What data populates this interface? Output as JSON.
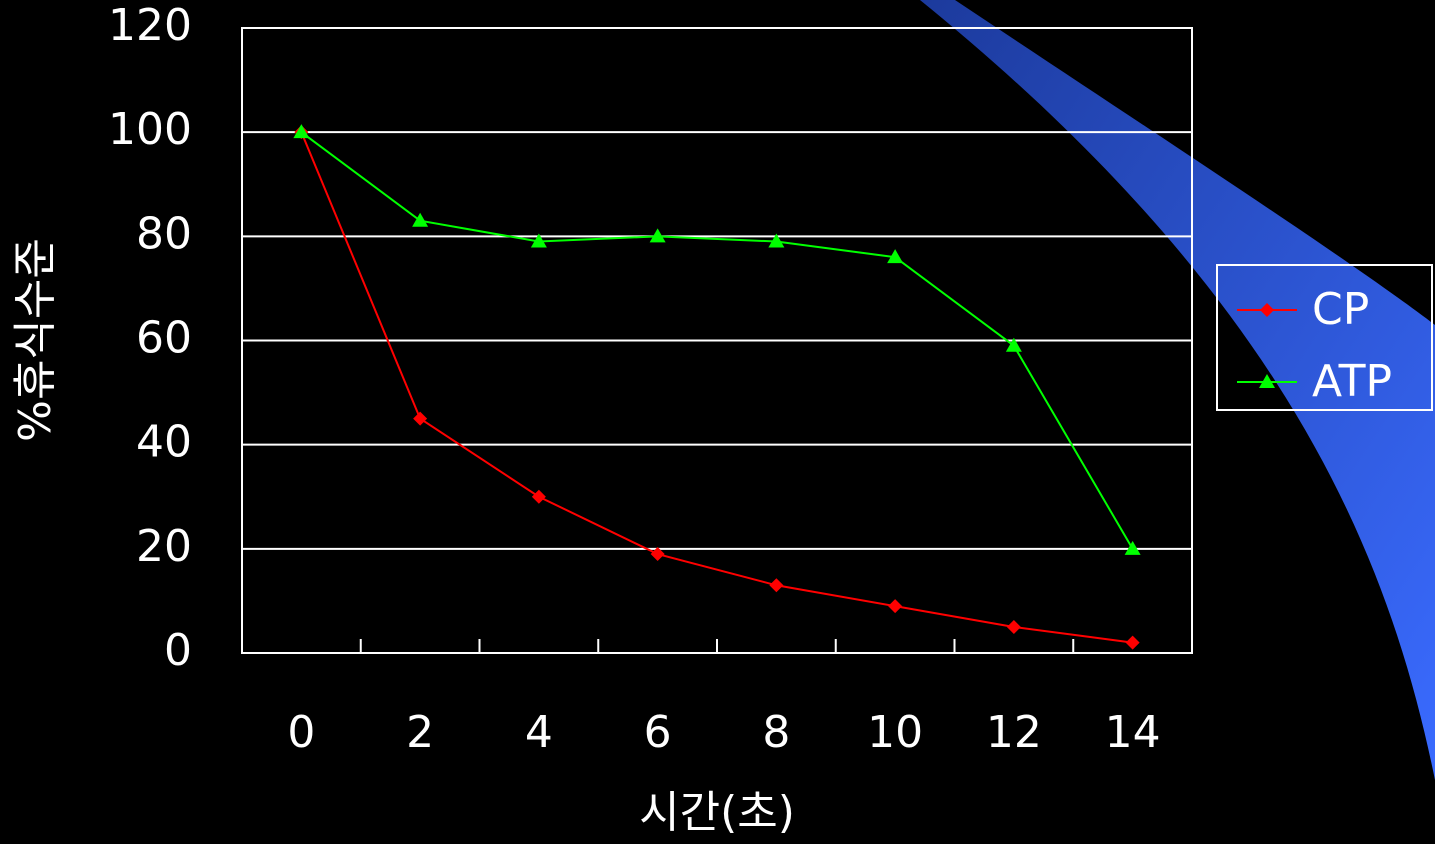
{
  "chart_data": {
    "type": "line",
    "x_label": "시간(초)",
    "y_label": "%휴식수준",
    "categories": [
      "0",
      "2",
      "4",
      "6",
      "8",
      "10",
      "12",
      "14"
    ],
    "series": [
      {
        "name": "CP",
        "color": "#ff0000",
        "marker": "diamond",
        "values": [
          100,
          45,
          30,
          19,
          13,
          9,
          5,
          2
        ]
      },
      {
        "name": "ATP",
        "color": "#00ff00",
        "marker": "triangle",
        "values": [
          100,
          83,
          79,
          80,
          79,
          76,
          59,
          20
        ]
      }
    ],
    "ylim": [
      0,
      120
    ],
    "yticks": [
      0,
      20,
      40,
      60,
      80,
      100,
      120
    ],
    "grid": true,
    "legend": "right"
  }
}
